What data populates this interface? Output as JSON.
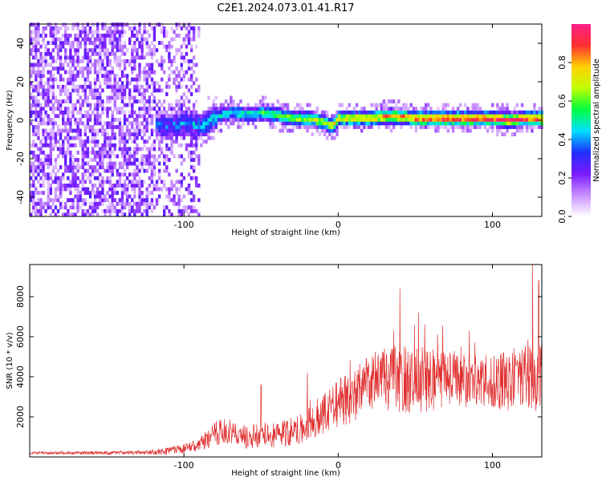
{
  "title": "C2E1.2024.073.01.41.R17",
  "chart_data": [
    {
      "type": "heatmap",
      "title": "C2E1.2024.073.01.41.R17",
      "xlabel": "Height of straight line (km)",
      "ylabel": "Frequency (Hz)",
      "xlim": [
        -200,
        132
      ],
      "ylim": [
        -50,
        50
      ],
      "xticks": [
        -100,
        0,
        100
      ],
      "yticks": [
        -40,
        -20,
        0,
        20,
        40
      ],
      "colorbar": {
        "label": "Normalized spectral amplitude",
        "range": [
          0,
          1
        ],
        "ticks": [
          "0.0",
          "0.2",
          "0.4",
          "0.6",
          "0.8"
        ],
        "colors": [
          "#ffffff",
          "#c890ff",
          "#7a1aff",
          "#2030ff",
          "#00e0ff",
          "#00ff40",
          "#c0ff00",
          "#ffd000",
          "#ff3030",
          "#ff1f8a"
        ]
      },
      "ridge": {
        "x": [
          -120,
          -110,
          -100,
          -90,
          -80,
          -70,
          -60,
          -50,
          -40,
          -30,
          -20,
          -10,
          -5,
          0,
          10,
          20,
          30,
          40,
          50,
          60,
          70,
          80,
          90,
          100,
          110,
          120,
          132
        ],
        "y": [
          -3,
          -4,
          -2,
          -4,
          1,
          3,
          2,
          3,
          2,
          0,
          0,
          -2,
          -4,
          0,
          0,
          0,
          1,
          1,
          0,
          0,
          0,
          0,
          0,
          0,
          -1,
          0,
          0
        ]
      },
      "noise_region": {
        "x_from": -200,
        "x_to": -90
      }
    },
    {
      "type": "line",
      "xlabel": "Height of straight line (km)",
      "ylabel": "SNR (10 * v/v)",
      "xlim": [
        -200,
        132
      ],
      "ylim": [
        0,
        9600
      ],
      "xticks": [
        -100,
        0,
        100
      ],
      "yticks": [
        2000,
        4000,
        6000,
        8000
      ],
      "color": "#e03030",
      "series": [
        {
          "x": [
            -200,
            -160,
            -125,
            -110,
            -100,
            -90,
            -80,
            -70,
            -60,
            -50,
            -40,
            -30,
            -20,
            -10,
            0,
            10,
            20,
            30,
            40,
            50,
            60,
            70,
            80,
            90,
            100,
            110,
            120,
            130
          ],
          "values": [
            200,
            200,
            220,
            300,
            400,
            600,
            1200,
            1300,
            1000,
            1100,
            1100,
            1300,
            1600,
            2200,
            2700,
            3000,
            3800,
            3900,
            3900,
            3800,
            3900,
            3900,
            4000,
            3800,
            3700,
            3800,
            4100,
            3900
          ],
          "spread": [
            60,
            80,
            100,
            200,
            250,
            350,
            600,
            650,
            600,
            600,
            650,
            750,
            800,
            1100,
            1200,
            1300,
            1500,
            1600,
            1700,
            1700,
            1600,
            1500,
            1500,
            1400,
            1400,
            1500,
            1600,
            1700
          ],
          "peaks": [
            [
              -50,
              3600
            ],
            [
              -20,
              4200
            ],
            [
              40,
              8400
            ],
            [
              52,
              7200
            ],
            [
              85,
              6300
            ],
            [
              126,
              9600
            ],
            [
              130,
              8800
            ]
          ]
        }
      ]
    }
  ]
}
